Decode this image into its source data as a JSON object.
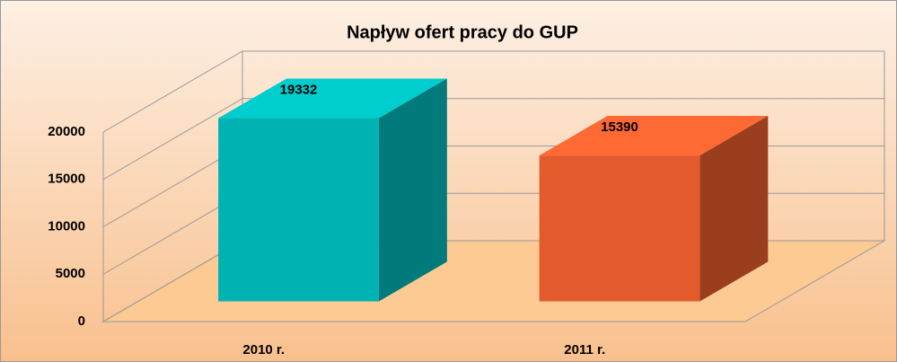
{
  "chart_data": {
    "type": "bar3d",
    "title": "Napływ ofert pracy do GUP",
    "categories": [
      "2010 r.",
      "2011 r."
    ],
    "values": [
      19332,
      15390
    ],
    "colors": [
      "#00b3b3",
      "#e35b2c"
    ],
    "ylim": [
      0,
      20000
    ],
    "yticks": [
      0,
      5000,
      10000,
      15000,
      20000
    ],
    "grid": true
  }
}
